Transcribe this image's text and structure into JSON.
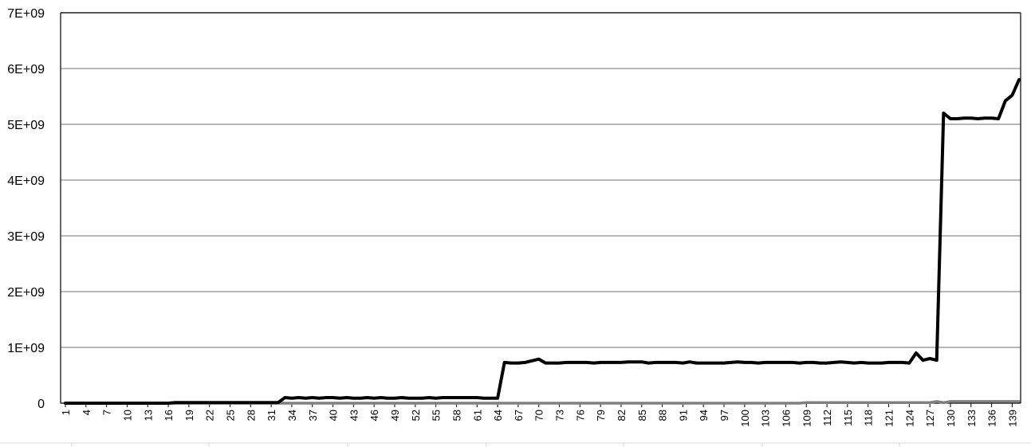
{
  "colors": {
    "background": "#ffffff",
    "gridline": "#8c8c8c",
    "axis": "#000000",
    "series_main": "#000000",
    "series_secondary": "#808080",
    "frame_bottom": "#d9d9d9"
  },
  "chart_data": {
    "type": "line",
    "title": "",
    "xlabel": "",
    "ylabel": "",
    "ylim": [
      0,
      7000000000
    ],
    "y_ticks": [
      {
        "value": 0,
        "label": "0"
      },
      {
        "value": 1000000000,
        "label": "1E+09"
      },
      {
        "value": 2000000000,
        "label": "2E+09"
      },
      {
        "value": 3000000000,
        "label": "3E+09"
      },
      {
        "value": 4000000000,
        "label": "4E+09"
      },
      {
        "value": 5000000000,
        "label": "5E+09"
      },
      {
        "value": 6000000000,
        "label": "6E+09"
      },
      {
        "value": 7000000000,
        "label": "7E+09"
      }
    ],
    "x_range": [
      1,
      140
    ],
    "x_tick_labels": [
      "1",
      "4",
      "7",
      "10",
      "13",
      "16",
      "19",
      "22",
      "25",
      "28",
      "31",
      "34",
      "37",
      "40",
      "43",
      "46",
      "49",
      "52",
      "55",
      "58",
      "61",
      "64",
      "67",
      "70",
      "73",
      "76",
      "79",
      "82",
      "85",
      "88",
      "91",
      "94",
      "97",
      "100",
      "103",
      "106",
      "109",
      "112",
      "115",
      "118",
      "121",
      "124",
      "127",
      "130",
      "133",
      "136",
      "139"
    ],
    "grid": true,
    "legend": "none",
    "series": [
      {
        "x": [
          1,
          16,
          17,
          32,
          33,
          34,
          35,
          36,
          37,
          38,
          39,
          40,
          41,
          42,
          43,
          44,
          45,
          46,
          47,
          48,
          49,
          50,
          51,
          52,
          53,
          54,
          55,
          56,
          57,
          58,
          59,
          60,
          61,
          62,
          63,
          64,
          65,
          66,
          67,
          68,
          69,
          70,
          71,
          72,
          73,
          74,
          75,
          76,
          77,
          78,
          79,
          80,
          81,
          82,
          83,
          84,
          85,
          86,
          87,
          88,
          89,
          90,
          91,
          92,
          93,
          94,
          95,
          96,
          97,
          98,
          99,
          100,
          101,
          102,
          103,
          104,
          105,
          106,
          107,
          108,
          109,
          110,
          111,
          112,
          113,
          114,
          115,
          116,
          117,
          118,
          119,
          120,
          121,
          122,
          123,
          124,
          125,
          126,
          127,
          128,
          129,
          130,
          131,
          132,
          133,
          134,
          135,
          136,
          137,
          138,
          139,
          140
        ],
        "y": [
          0,
          0,
          10000000,
          10000000,
          100000000,
          90000000,
          100000000,
          90000000,
          100000000,
          90000000,
          100000000,
          100000000,
          90000000,
          100000000,
          90000000,
          90000000,
          100000000,
          90000000,
          100000000,
          90000000,
          90000000,
          100000000,
          90000000,
          90000000,
          90000000,
          100000000,
          90000000,
          100000000,
          100000000,
          100000000,
          100000000,
          100000000,
          100000000,
          90000000,
          90000000,
          90000000,
          730000000,
          720000000,
          720000000,
          730000000,
          760000000,
          790000000,
          720000000,
          720000000,
          720000000,
          730000000,
          730000000,
          730000000,
          730000000,
          720000000,
          730000000,
          730000000,
          730000000,
          730000000,
          740000000,
          740000000,
          740000000,
          720000000,
          730000000,
          730000000,
          730000000,
          730000000,
          720000000,
          740000000,
          720000000,
          720000000,
          720000000,
          720000000,
          720000000,
          730000000,
          740000000,
          730000000,
          730000000,
          720000000,
          730000000,
          730000000,
          730000000,
          730000000,
          730000000,
          720000000,
          730000000,
          730000000,
          720000000,
          720000000,
          730000000,
          740000000,
          730000000,
          720000000,
          730000000,
          720000000,
          720000000,
          720000000,
          730000000,
          730000000,
          730000000,
          720000000,
          900000000,
          770000000,
          800000000,
          770000000,
          5200000000,
          5100000000,
          5100000000,
          5110000000,
          5110000000,
          5100000000,
          5110000000,
          5110000000,
          5100000000,
          5420000000,
          5520000000,
          5800000000
        ]
      },
      {
        "x": [
          1,
          108,
          109,
          127,
          128,
          129,
          130,
          140
        ],
        "y": [
          0,
          0,
          10000000,
          10000000,
          30000000,
          10000000,
          30000000,
          30000000
        ]
      }
    ]
  }
}
